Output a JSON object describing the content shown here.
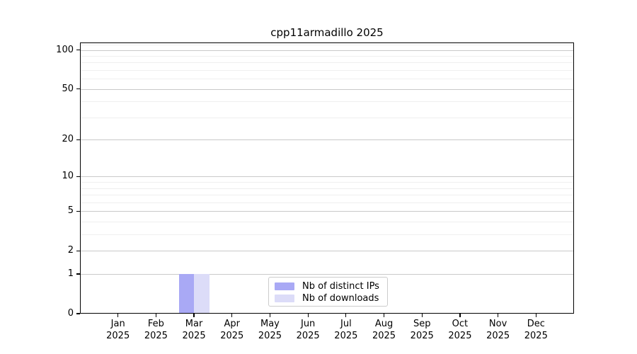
{
  "chart_data": {
    "type": "bar",
    "title": "cpp11armadillo 2025",
    "x": {
      "categories": [
        "Jan",
        "Feb",
        "Mar",
        "Apr",
        "May",
        "Jun",
        "Jul",
        "Aug",
        "Sep",
        "Oct",
        "Nov",
        "Dec"
      ],
      "year_label": "2025"
    },
    "y_axis": {
      "scale": "log1p",
      "tick_values": [
        0,
        1,
        2,
        5,
        10,
        20,
        50,
        100
      ],
      "tick_labels": [
        "0",
        "1",
        "2",
        "5",
        "10",
        "20",
        "50",
        "100"
      ],
      "minor_gridline_values": [
        3,
        4,
        6,
        7,
        8,
        9,
        30,
        40,
        60,
        70,
        80,
        90,
        110
      ],
      "ylim": [
        0,
        115
      ]
    },
    "series": [
      {
        "name": "Nb of distinct IPs",
        "color": "#a9a9f5",
        "values": [
          0,
          0,
          1,
          0,
          0,
          0,
          0,
          0,
          0,
          0,
          0,
          0
        ]
      },
      {
        "name": "Nb of downloads",
        "color": "#dcdcf8",
        "values": [
          0,
          0,
          1,
          0,
          0,
          0,
          0,
          0,
          0,
          0,
          0,
          0
        ]
      }
    ],
    "legend": {
      "position": "bottom-center"
    },
    "colors": {
      "grid_major": "#c9c9c9",
      "grid_minor": "#efefef",
      "spine": "#000000",
      "text": "#000000",
      "background": "#ffffff"
    }
  }
}
